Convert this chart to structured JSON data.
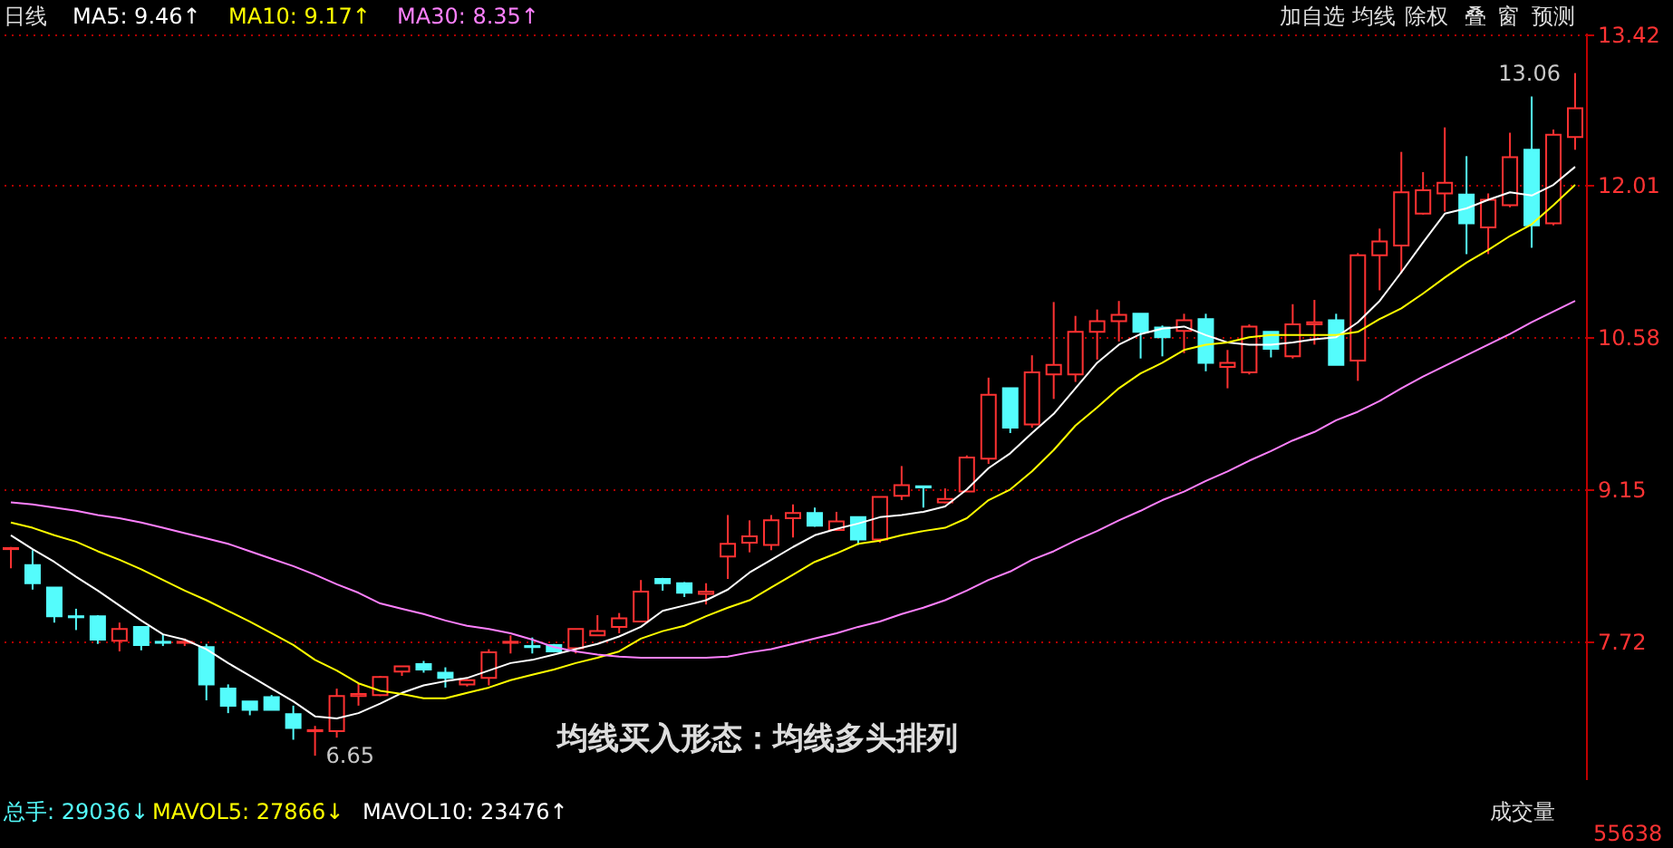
{
  "chart_data": {
    "type": "candlestick",
    "categories": [
      null,
      null,
      null,
      null,
      null,
      null,
      null,
      null,
      null,
      null,
      null,
      null,
      null,
      null,
      null,
      null,
      null,
      null,
      null,
      null,
      null,
      null,
      null,
      null,
      null,
      null,
      null,
      null,
      null,
      null,
      null,
      null,
      null,
      null,
      null,
      null,
      null,
      null,
      null,
      null,
      null,
      null,
      null,
      null,
      null,
      null,
      null,
      null,
      null,
      null,
      null,
      null,
      null,
      null,
      null,
      null,
      null,
      null,
      null,
      null,
      null,
      null,
      null,
      null,
      null,
      null,
      null,
      null,
      null,
      null,
      null,
      null,
      null
    ],
    "ohlc": [
      [
        8.59,
        8.61,
        8.41,
        8.6
      ],
      [
        8.44,
        8.58,
        8.21,
        8.27
      ],
      [
        8.23,
        8.23,
        7.9,
        7.96
      ],
      [
        7.96,
        8.03,
        7.83,
        7.95
      ],
      [
        7.96,
        7.97,
        7.7,
        7.74
      ],
      [
        7.73,
        7.9,
        7.63,
        7.84
      ],
      [
        7.86,
        7.86,
        7.64,
        7.69
      ],
      [
        7.72,
        7.79,
        7.68,
        7.71
      ],
      [
        7.71,
        7.75,
        7.68,
        7.72
      ],
      [
        7.67,
        7.7,
        7.17,
        7.32
      ],
      [
        7.28,
        7.32,
        7.05,
        7.12
      ],
      [
        7.16,
        7.16,
        7.03,
        7.08
      ],
      [
        7.2,
        7.22,
        7.08,
        7.08
      ],
      [
        7.04,
        7.12,
        6.8,
        6.91
      ],
      [
        6.88,
        6.93,
        6.65,
        6.89
      ],
      [
        6.88,
        7.28,
        6.82,
        7.21
      ],
      [
        7.21,
        7.33,
        7.12,
        7.23
      ],
      [
        7.22,
        7.4,
        7.21,
        7.39
      ],
      [
        7.44,
        7.49,
        7.4,
        7.49
      ],
      [
        7.51,
        7.54,
        7.43,
        7.46
      ],
      [
        7.43,
        7.48,
        7.29,
        7.38
      ],
      [
        7.32,
        7.37,
        7.3,
        7.36
      ],
      [
        7.38,
        7.65,
        7.31,
        7.62
      ],
      [
        7.71,
        7.78,
        7.61,
        7.72
      ],
      [
        7.68,
        7.76,
        7.61,
        7.67
      ],
      [
        7.69,
        7.7,
        7.62,
        7.63
      ],
      [
        7.66,
        7.84,
        7.61,
        7.84
      ],
      [
        7.78,
        7.97,
        7.78,
        7.82
      ],
      [
        7.86,
        7.99,
        7.8,
        7.94
      ],
      [
        7.91,
        8.3,
        7.91,
        8.19
      ],
      [
        8.31,
        8.32,
        8.2,
        8.27
      ],
      [
        8.27,
        8.28,
        8.14,
        8.18
      ],
      [
        8.17,
        8.27,
        8.07,
        8.19
      ],
      [
        8.52,
        8.91,
        8.31,
        8.64
      ],
      [
        8.65,
        8.86,
        8.56,
        8.71
      ],
      [
        8.63,
        8.91,
        8.58,
        8.86
      ],
      [
        8.88,
        9.01,
        8.7,
        8.93
      ],
      [
        8.93,
        8.98,
        8.8,
        8.81
      ],
      [
        8.77,
        8.94,
        8.76,
        8.85
      ],
      [
        8.89,
        8.89,
        8.63,
        8.68
      ],
      [
        8.68,
        9.08,
        8.65,
        9.08
      ],
      [
        9.09,
        9.37,
        9.05,
        9.19
      ],
      [
        9.18,
        9.18,
        8.98,
        9.17
      ],
      [
        9.03,
        9.16,
        9.02,
        9.06
      ],
      [
        9.13,
        9.47,
        9.13,
        9.45
      ],
      [
        9.44,
        10.2,
        9.39,
        10.04
      ],
      [
        10.1,
        10.1,
        9.68,
        9.73
      ],
      [
        9.76,
        10.41,
        9.73,
        10.25
      ],
      [
        10.23,
        10.91,
        10.0,
        10.32
      ],
      [
        10.23,
        10.78,
        10.16,
        10.63
      ],
      [
        10.63,
        10.84,
        10.37,
        10.73
      ],
      [
        10.73,
        10.92,
        10.54,
        10.79
      ],
      [
        10.8,
        10.8,
        10.38,
        10.63
      ],
      [
        10.67,
        10.69,
        10.4,
        10.58
      ],
      [
        10.64,
        10.8,
        10.43,
        10.74
      ],
      [
        10.75,
        10.8,
        10.26,
        10.34
      ],
      [
        10.3,
        10.46,
        10.1,
        10.34
      ],
      [
        10.25,
        10.7,
        10.23,
        10.68
      ],
      [
        10.63,
        10.63,
        10.39,
        10.47
      ],
      [
        10.4,
        10.89,
        10.38,
        10.7
      ],
      [
        10.7,
        10.93,
        10.51,
        10.72
      ],
      [
        10.74,
        10.8,
        10.32,
        10.32
      ],
      [
        10.36,
        11.37,
        10.17,
        11.35
      ],
      [
        11.35,
        11.6,
        11.02,
        11.48
      ],
      [
        11.44,
        12.32,
        11.18,
        11.94
      ],
      [
        11.74,
        12.13,
        11.73,
        11.96
      ],
      [
        11.93,
        12.55,
        11.76,
        12.03
      ],
      [
        11.92,
        12.28,
        11.36,
        11.65
      ],
      [
        11.61,
        11.93,
        11.36,
        11.87
      ],
      [
        11.82,
        12.5,
        11.8,
        12.27
      ],
      [
        12.34,
        12.84,
        11.42,
        11.63
      ],
      [
        11.65,
        12.53,
        11.63,
        12.48
      ],
      [
        12.46,
        13.06,
        12.34,
        12.73
      ]
    ],
    "series": [
      {
        "name": "MA5: 9.46↑",
        "type": "line",
        "color": "#ffffff",
        "values": [
          8.72,
          8.59,
          8.47,
          8.33,
          8.2,
          8.06,
          7.92,
          7.79,
          7.74,
          7.65,
          7.52,
          7.4,
          7.28,
          7.16,
          7.02,
          7.0,
          7.05,
          7.14,
          7.24,
          7.31,
          7.35,
          7.38,
          7.45,
          7.52,
          7.55,
          7.6,
          7.65,
          7.7,
          7.77,
          7.86,
          8.01,
          8.06,
          8.11,
          8.21,
          8.37,
          8.49,
          8.61,
          8.72,
          8.78,
          8.83,
          8.89,
          8.91,
          8.94,
          8.99,
          9.15,
          9.35,
          9.49,
          9.68,
          9.86,
          10.1,
          10.34,
          10.51,
          10.61,
          10.66,
          10.68,
          10.6,
          10.53,
          10.51,
          10.51,
          10.53,
          10.56,
          10.58,
          10.72,
          10.92,
          11.19,
          11.47,
          11.74,
          11.79,
          11.87,
          11.94,
          11.91,
          12.01,
          12.18
        ]
      },
      {
        "name": "MA10: 9.17↑",
        "type": "line",
        "color": "#ffff00",
        "values": [
          8.84,
          8.79,
          8.72,
          8.66,
          8.57,
          8.49,
          8.4,
          8.3,
          8.2,
          8.11,
          8.01,
          7.91,
          7.8,
          7.69,
          7.55,
          7.45,
          7.33,
          7.26,
          7.23,
          7.19,
          7.19,
          7.24,
          7.29,
          7.36,
          7.41,
          7.46,
          7.52,
          7.57,
          7.63,
          7.75,
          7.82,
          7.87,
          7.96,
          8.04,
          8.11,
          8.23,
          8.35,
          8.47,
          8.55,
          8.64,
          8.67,
          8.72,
          8.76,
          8.79,
          8.88,
          9.05,
          9.15,
          9.32,
          9.52,
          9.75,
          9.92,
          10.1,
          10.24,
          10.34,
          10.46,
          10.51,
          10.53,
          10.58,
          10.6,
          10.6,
          10.6,
          10.6,
          10.63,
          10.75,
          10.85,
          10.99,
          11.14,
          11.28,
          11.4,
          11.53,
          11.64,
          11.82,
          12.01
        ]
      },
      {
        "name": "MA30: 8.35↑",
        "type": "line",
        "color": "#ff80ff",
        "values": [
          9.03,
          9.01,
          8.98,
          8.95,
          8.91,
          8.88,
          8.84,
          8.79,
          8.74,
          8.69,
          8.64,
          8.57,
          8.5,
          8.43,
          8.35,
          8.26,
          8.18,
          8.08,
          8.03,
          7.98,
          7.92,
          7.87,
          7.84,
          7.8,
          7.74,
          7.67,
          7.63,
          7.6,
          7.58,
          7.57,
          7.57,
          7.57,
          7.57,
          7.58,
          7.62,
          7.65,
          7.7,
          7.75,
          7.8,
          7.86,
          7.91,
          7.98,
          8.04,
          8.11,
          8.2,
          8.3,
          8.38,
          8.49,
          8.57,
          8.67,
          8.76,
          8.86,
          8.95,
          9.05,
          9.13,
          9.23,
          9.32,
          9.42,
          9.51,
          9.61,
          9.69,
          9.8,
          9.88,
          9.98,
          10.1,
          10.21,
          10.31,
          10.41,
          10.51,
          10.61,
          10.72,
          10.82,
          10.92
        ]
      }
    ],
    "ylim": [
      6.43,
      13.44
    ],
    "yticks": [
      7.72,
      9.15,
      10.58,
      12.01,
      13.42
    ],
    "grid": "y",
    "legend": "top left",
    "tick_labels": "y",
    "line_style": "solid",
    "marker": "none",
    "annotations": [
      "日线",
      "加自选",
      "均线",
      "除权",
      "叠",
      "窗",
      "预测",
      "均线买入形态：均线多头排列",
      "总手: 29036↓",
      "MAVOL5: 27866↓",
      "MAVOL10: 23476↑",
      "成交量",
      "55638",
      "13.06",
      "6.65"
    ]
  }
}
